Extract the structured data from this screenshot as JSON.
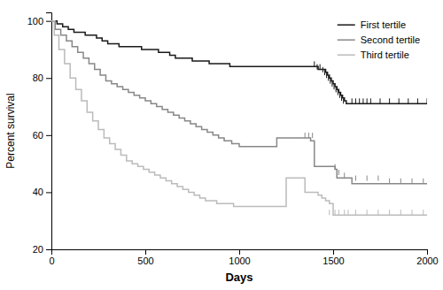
{
  "chart_data": {
    "type": "step",
    "xlabel": "Days",
    "ylabel": "Percent survival",
    "xlim": [
      0,
      2000
    ],
    "ylim": [
      20,
      103
    ],
    "xticks": [
      0,
      500,
      1000,
      1500,
      2000
    ],
    "yticks": [
      20,
      40,
      60,
      80,
      100
    ],
    "grid": false,
    "legend": "upper right",
    "series": [
      {
        "name": "First tertile",
        "color": "#1a1a1a",
        "x": [
          0,
          30,
          60,
          90,
          120,
          150,
          180,
          210,
          240,
          270,
          300,
          330,
          360,
          390,
          420,
          450,
          480,
          510,
          540,
          570,
          600,
          630,
          660,
          690,
          720,
          750,
          780,
          810,
          840,
          870,
          900,
          950,
          1000,
          1050,
          1100,
          1150,
          1200,
          1250,
          1300,
          1350,
          1400,
          1420,
          1440,
          1460,
          1470,
          1480,
          1490,
          1500,
          1510,
          1520,
          1530,
          1540,
          1550,
          1560,
          1570,
          1580,
          1600,
          1620,
          1640,
          1660,
          1680,
          1700,
          1750,
          1800,
          1850,
          1900,
          1950,
          2000
        ],
        "values": [
          100,
          99,
          98,
          97,
          96,
          96,
          95,
          95,
          94,
          93,
          92,
          92,
          91,
          91,
          91,
          91,
          90,
          90,
          90,
          89,
          89,
          88,
          87,
          87,
          87,
          86,
          86,
          86,
          85,
          85,
          85,
          84,
          84,
          84,
          84,
          84,
          84,
          84,
          84,
          84,
          84,
          83,
          83,
          82,
          81,
          80,
          79,
          78,
          77,
          76,
          75,
          74,
          73,
          72,
          71,
          71,
          71,
          71,
          71,
          71,
          71,
          71,
          71,
          71,
          71,
          71,
          71,
          71
        ],
        "censored": {
          "x": [
            1400,
            1415,
            1430,
            1445,
            1455,
            1465,
            1475,
            1485,
            1495,
            1505,
            1515,
            1525,
            1535,
            1545,
            1555,
            1600,
            1620,
            1640,
            1660,
            1680,
            1700,
            1750,
            1800,
            1850,
            1900,
            1950,
            2000
          ],
          "y": [
            84,
            83,
            83,
            82,
            81,
            80,
            79,
            78,
            77,
            76,
            75,
            74,
            73,
            72,
            71,
            71,
            71,
            71,
            71,
            71,
            71,
            71,
            71,
            71,
            71,
            71,
            71
          ]
        }
      },
      {
        "name": "Second tertile",
        "color": "#888888",
        "x": [
          0,
          20,
          50,
          80,
          110,
          140,
          170,
          200,
          230,
          260,
          290,
          320,
          350,
          380,
          410,
          440,
          470,
          500,
          530,
          560,
          590,
          620,
          650,
          680,
          710,
          740,
          770,
          800,
          830,
          860,
          890,
          920,
          960,
          1000,
          1050,
          1100,
          1150,
          1200,
          1250,
          1300,
          1350,
          1380,
          1400,
          1420,
          1440,
          1460,
          1480,
          1490,
          1500,
          1510,
          1520,
          1540,
          1560,
          1600,
          1640,
          1680,
          1720,
          1760,
          1800,
          1840,
          1880,
          1920,
          1960,
          2000
        ],
        "values": [
          100,
          97,
          95,
          93,
          91,
          89,
          87,
          85,
          83,
          81,
          79,
          78,
          77,
          76,
          75,
          74,
          73,
          72,
          71,
          70,
          69,
          68,
          67,
          66,
          65,
          64,
          63,
          62,
          61,
          60,
          59,
          58,
          57,
          56,
          56,
          56,
          56,
          59,
          59,
          59,
          59,
          58,
          49,
          49,
          49,
          49,
          49,
          49,
          49,
          48,
          45,
          45,
          45,
          43,
          43,
          43,
          43,
          43,
          43,
          43,
          43,
          43,
          43,
          43
        ],
        "censored": {
          "x": [
            1350,
            1370,
            1390,
            1510,
            1530,
            1560,
            1620,
            1680,
            1740,
            1800,
            1860,
            1920,
            1980
          ],
          "y": [
            59,
            59,
            59,
            48,
            46,
            45,
            44,
            44,
            44,
            43,
            43,
            43,
            43
          ]
        }
      },
      {
        "name": "Third tertile",
        "color": "#bbbbbb",
        "x": [
          0,
          15,
          40,
          70,
          100,
          130,
          160,
          190,
          220,
          250,
          280,
          310,
          340,
          370,
          400,
          430,
          460,
          490,
          520,
          550,
          580,
          610,
          640,
          670,
          700,
          730,
          760,
          790,
          820,
          850,
          880,
          910,
          940,
          970,
          1000,
          1050,
          1100,
          1150,
          1200,
          1250,
          1300,
          1350,
          1400,
          1420,
          1440,
          1460,
          1480,
          1500,
          1520,
          1540,
          1560,
          1580,
          1600,
          1640,
          1680,
          1720,
          1760,
          1800,
          1840,
          1880,
          1920,
          1960,
          2000
        ],
        "values": [
          100,
          95,
          90,
          85,
          80,
          76,
          72,
          68,
          65,
          62,
          59,
          57,
          55,
          53,
          51,
          50,
          49,
          48,
          47,
          46,
          45,
          44,
          43,
          42,
          41,
          40,
          39,
          38,
          37,
          37,
          36,
          36,
          36,
          35,
          35,
          35,
          35,
          35,
          35,
          45,
          45,
          40,
          40,
          39,
          38,
          37,
          36,
          32,
          32,
          32,
          32,
          32,
          32,
          32,
          32,
          32,
          32,
          32,
          32,
          32,
          32,
          32,
          32
        ],
        "censored": {
          "x": [
            1480,
            1510,
            1530,
            1560,
            1580,
            1620,
            1680,
            1740,
            1800,
            1860,
            1920,
            1980
          ],
          "y": [
            32,
            32,
            32,
            32,
            32,
            32,
            32,
            32,
            32,
            32,
            32,
            32
          ]
        }
      }
    ]
  }
}
